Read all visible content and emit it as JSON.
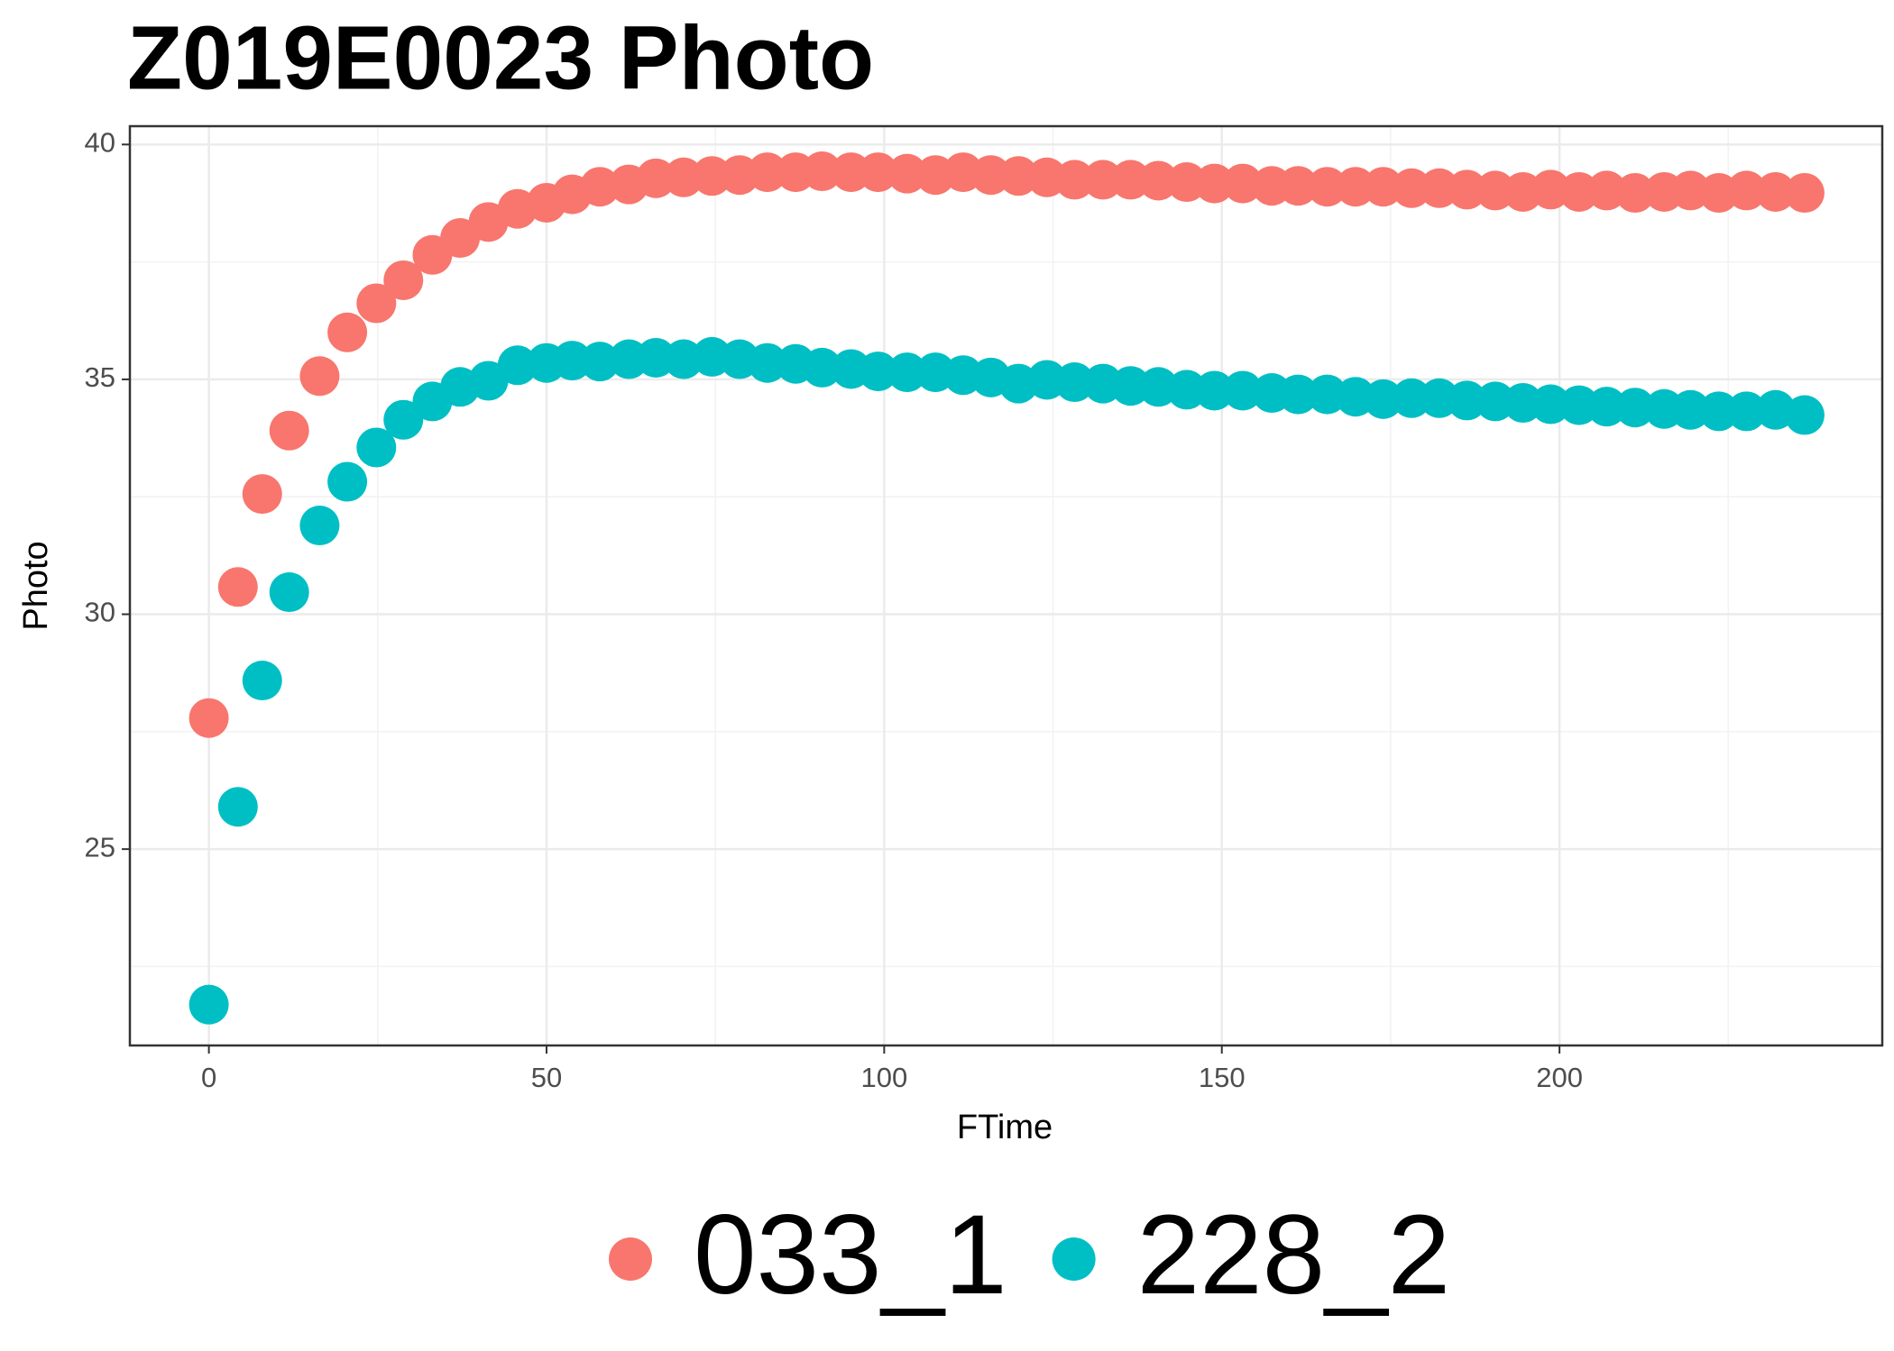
{
  "chart_data": {
    "type": "scatter",
    "title": "Z019E0023 Photo",
    "x_label": "FTime",
    "y_label": "Photo",
    "x": [
      0,
      4.3,
      7.9,
      11.9,
      16.4,
      20.5,
      24.8,
      28.8,
      33.1,
      37.2,
      41.4,
      45.7,
      50,
      53.8,
      57.9,
      62.2,
      66.2,
      70.3,
      74.5,
      78.6,
      82.7,
      86.9,
      90.8,
      95.1,
      99.1,
      103.4,
      107.6,
      111.7,
      115.8,
      119.9,
      124.1,
      128.2,
      132.4,
      136.5,
      140.6,
      144.8,
      148.9,
      153.1,
      157.4,
      161.3,
      165.6,
      169.8,
      173.9,
      178.1,
      182.2,
      186.3,
      190.5,
      194.6,
      198.7,
      202.9,
      207,
      211.2,
      215.5,
      219.4,
      223.6,
      227.7,
      232,
      236.3
    ],
    "series": [
      {
        "name": "033_1",
        "color": "#F8766D",
        "values": [
          27.79,
          30.58,
          32.56,
          33.91,
          35.07,
          36.0,
          36.62,
          37.11,
          37.65,
          38.01,
          38.35,
          38.63,
          38.76,
          38.94,
          39.1,
          39.15,
          39.28,
          39.3,
          39.33,
          39.35,
          39.41,
          39.41,
          39.43,
          39.41,
          39.41,
          39.38,
          39.35,
          39.41,
          39.35,
          39.33,
          39.3,
          39.25,
          39.25,
          39.25,
          39.23,
          39.2,
          39.17,
          39.17,
          39.12,
          39.12,
          39.1,
          39.1,
          39.1,
          39.07,
          39.07,
          39.04,
          39.02,
          38.99,
          39.04,
          38.99,
          39.02,
          38.97,
          38.99,
          39.02,
          38.97,
          39.02,
          38.99,
          38.97
        ]
      },
      {
        "name": "228_2",
        "color": "#00BFC4",
        "values": [
          21.69,
          25.9,
          28.59,
          30.47,
          31.89,
          32.82,
          33.55,
          34.14,
          34.53,
          34.84,
          34.97,
          35.3,
          35.35,
          35.4,
          35.38,
          35.43,
          35.46,
          35.43,
          35.48,
          35.43,
          35.35,
          35.33,
          35.25,
          35.22,
          35.17,
          35.15,
          35.15,
          35.09,
          35.04,
          34.91,
          34.99,
          34.94,
          34.91,
          34.86,
          34.84,
          34.78,
          34.76,
          34.76,
          34.71,
          34.68,
          34.68,
          34.63,
          34.58,
          34.6,
          34.6,
          34.55,
          34.53,
          34.5,
          34.47,
          34.45,
          34.42,
          34.4,
          34.37,
          34.35,
          34.32,
          34.32,
          34.35,
          34.24
        ]
      }
    ],
    "xlim": [
      -11.7,
      247.8
    ],
    "ylim": [
      20.82,
      40.39
    ],
    "xticks": [
      0,
      50,
      100,
      150,
      200
    ],
    "yticks": [
      25,
      30,
      35,
      40
    ],
    "grid": true,
    "legend": "bottom"
  }
}
